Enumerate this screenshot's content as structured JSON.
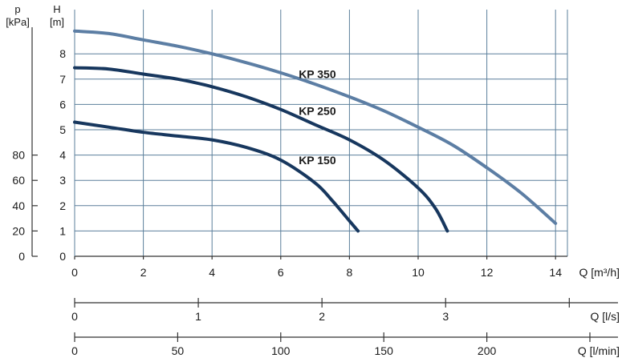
{
  "chart_data": {
    "type": "line",
    "title": "",
    "left_axis": {
      "label_line1": "p",
      "label_line2": "[kPa]",
      "ticks": [
        "0",
        "20",
        "40",
        "60",
        "80"
      ],
      "values": [
        0,
        20,
        40,
        60,
        80
      ]
    },
    "y_axis": {
      "label_line1": "H",
      "label_line2": "[m]",
      "ticks": [
        "0",
        "1",
        "2",
        "3",
        "4",
        "5",
        "6",
        "7",
        "8"
      ],
      "values": [
        0,
        1,
        2,
        3,
        4,
        5,
        6,
        7,
        8
      ],
      "ylim": [
        0,
        9
      ]
    },
    "x_axis": {
      "label": "Q [m³/h]",
      "ticks": [
        "0",
        "2",
        "4",
        "6",
        "8",
        "10",
        "12",
        "14"
      ],
      "values": [
        0,
        2,
        4,
        6,
        8,
        10,
        12,
        14
      ],
      "xlim": [
        0,
        15.5
      ]
    },
    "x_axis_ls": {
      "label": "Q [l/s]",
      "ticks": [
        "0",
        "1",
        "2",
        "3"
      ],
      "values": [
        0,
        1,
        2,
        3
      ]
    },
    "x_axis_lmin": {
      "label": "Q [l/min]",
      "ticks": [
        "0",
        "50",
        "100",
        "150",
        "200"
      ],
      "values": [
        0,
        50,
        100,
        150,
        200
      ]
    },
    "grid": true,
    "colors": {
      "grid": "#5b7f9b",
      "KP 150": "#17375e",
      "KP 250": "#17375e",
      "KP 350": "#5c7ea4",
      "axis": "#333333"
    },
    "series": [
      {
        "name": "KP 150",
        "label_at": [
          6.5,
          3.8
        ],
        "x": [
          0,
          1,
          2,
          3,
          4,
          5,
          6,
          7,
          7.5,
          8,
          8.25
        ],
        "y": [
          5.3,
          5.1,
          4.9,
          4.75,
          4.6,
          4.3,
          3.8,
          2.9,
          2.2,
          1.4,
          1.0
        ]
      },
      {
        "name": "KP 250",
        "label_at": [
          6.5,
          5.75
        ],
        "x": [
          0,
          1,
          2,
          3,
          4,
          5,
          6,
          7,
          8,
          9,
          10,
          10.5,
          10.85
        ],
        "y": [
          7.45,
          7.4,
          7.2,
          7.0,
          6.7,
          6.3,
          5.8,
          5.2,
          4.6,
          3.8,
          2.7,
          1.9,
          1.0
        ]
      },
      {
        "name": "KP 350",
        "label_at": [
          6.5,
          7.2
        ],
        "x": [
          0,
          1,
          2,
          3,
          4,
          5,
          6,
          7,
          8,
          9,
          10,
          11,
          12,
          13,
          14
        ],
        "y": [
          8.9,
          8.8,
          8.55,
          8.3,
          8.0,
          7.65,
          7.25,
          6.8,
          6.3,
          5.75,
          5.1,
          4.4,
          3.5,
          2.5,
          1.3
        ]
      }
    ]
  }
}
